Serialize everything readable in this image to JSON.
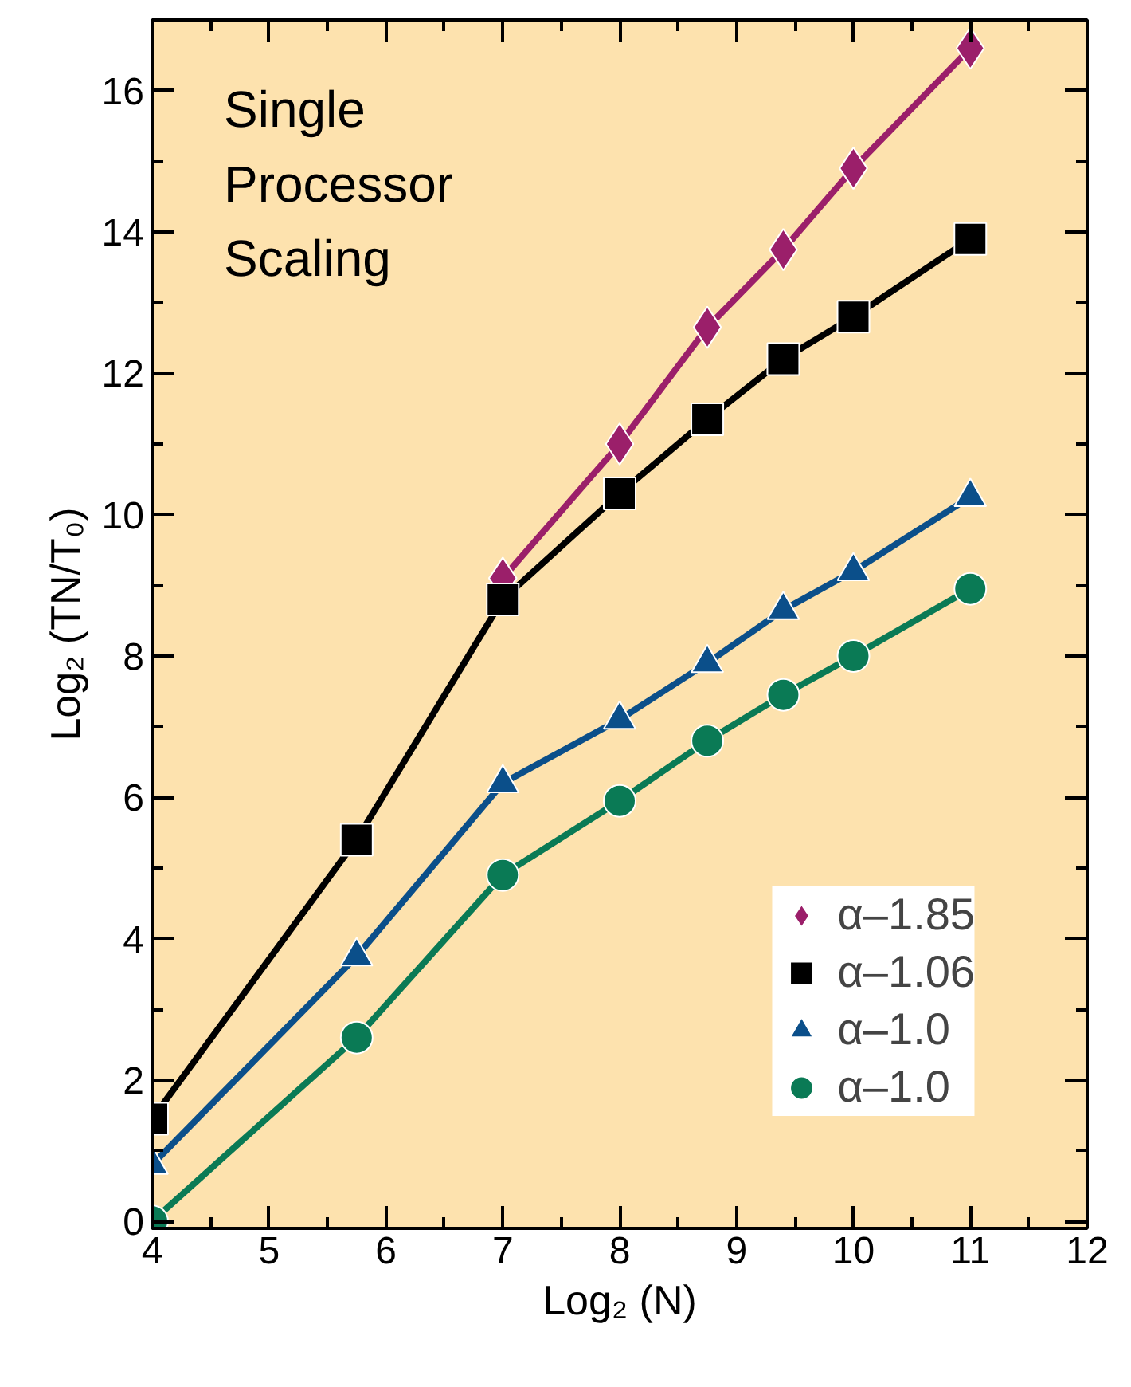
{
  "chart_data": {
    "type": "line",
    "xlabel": "Log₂ (N)",
    "ylabel": "Log₂ (TN/T₀)",
    "annotations": [
      "Single\nProcessor\nScaling"
    ],
    "x": [
      4,
      5.75,
      7,
      8,
      8.75,
      9.4,
      10,
      11
    ],
    "series": [
      {
        "name": "α–1.85",
        "color": "#9b1f6a",
        "marker": "diamond",
        "values": [
          null,
          null,
          9.1,
          11.0,
          12.65,
          13.75,
          14.9,
          16.6
        ]
      },
      {
        "name": "α–1.06",
        "color": "#000000",
        "marker": "square",
        "values": [
          1.45,
          5.4,
          8.8,
          10.3,
          11.35,
          12.2,
          12.8,
          13.9
        ]
      },
      {
        "name": "α–1.0",
        "color": "#0b4f8a",
        "marker": "triangle",
        "values": [
          0.8,
          3.75,
          6.2,
          7.1,
          7.9,
          8.65,
          9.2,
          10.25
        ]
      },
      {
        "name": "α–1.0",
        "color": "#0a7a55",
        "marker": "circle",
        "values": [
          0.0,
          2.6,
          4.9,
          5.95,
          6.8,
          7.45,
          8.0,
          8.95
        ]
      }
    ],
    "xlim": [
      4,
      12
    ],
    "ylim": [
      -0.1,
      17
    ],
    "xticks": [
      4,
      5,
      6,
      7,
      8,
      9,
      10,
      11,
      12
    ],
    "yticks": [
      0,
      2,
      4,
      6,
      8,
      10,
      12,
      14,
      16
    ],
    "grid": false,
    "legend": "bottom right",
    "line_style": "solid"
  }
}
